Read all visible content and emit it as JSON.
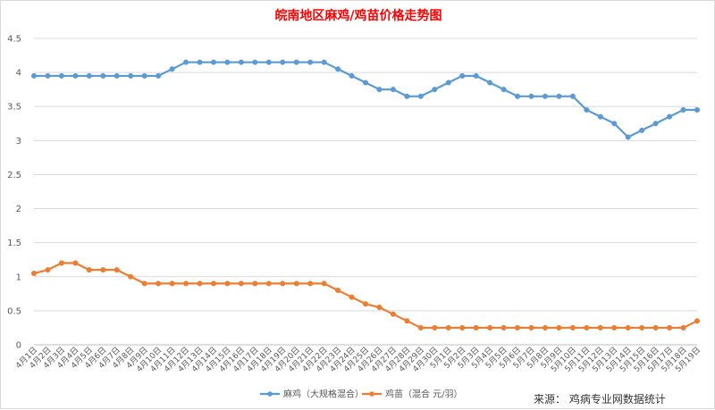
{
  "chart_data": {
    "type": "line",
    "title": "皖南地区麻鸡/鸡苗价格走势图",
    "xlabel": "",
    "ylabel": "",
    "ylim": [
      0,
      4.5
    ],
    "yticks": [
      "0",
      "0.5",
      "1",
      "1.5",
      "2",
      "2.5",
      "3",
      "3.5",
      "4",
      "4.5"
    ],
    "grid": true,
    "legend_position": "bottom",
    "categories": [
      "4月1日",
      "4月2日",
      "4月3日",
      "4月4日",
      "4月5日",
      "4月6日",
      "4月7日",
      "4月8日",
      "4月9日",
      "4月10日",
      "4月11日",
      "4月12日",
      "4月13日",
      "4月14日",
      "4月15日",
      "4月16日",
      "4月17日",
      "4月18日",
      "4月19日",
      "4月20日",
      "4月21日",
      "4月22日",
      "4月23日",
      "4月24日",
      "4月25日",
      "4月26日",
      "4月27日",
      "4月28日",
      "4月29日",
      "4月30日",
      "5月1日",
      "5月2日",
      "5月3日",
      "5月4日",
      "5月5日",
      "5月6日",
      "5月7日",
      "5月8日",
      "5月9日",
      "5月10日",
      "5月11日",
      "5月12日",
      "5月13日",
      "5月14日",
      "5月15日",
      "5月16日",
      "5月17日",
      "5月18日",
      "5月19日"
    ],
    "series": [
      {
        "name": "麻鸡（大规格混合）",
        "color": "#5b9bd5",
        "values": [
          3.95,
          3.95,
          3.95,
          3.95,
          3.95,
          3.95,
          3.95,
          3.95,
          3.95,
          3.95,
          4.05,
          4.15,
          4.15,
          4.15,
          4.15,
          4.15,
          4.15,
          4.15,
          4.15,
          4.15,
          4.15,
          4.15,
          4.05,
          3.95,
          3.85,
          3.75,
          3.75,
          3.65,
          3.65,
          3.75,
          3.85,
          3.95,
          3.95,
          3.85,
          3.75,
          3.65,
          3.65,
          3.65,
          3.65,
          3.65,
          3.45,
          3.35,
          3.25,
          3.05,
          3.15,
          3.25,
          3.35,
          3.45,
          3.45
        ]
      },
      {
        "name": "鸡苗（混合 元/羽）",
        "color": "#ed7d31",
        "values": [
          1.05,
          1.1,
          1.2,
          1.2,
          1.1,
          1.1,
          1.1,
          1.0,
          0.9,
          0.9,
          0.9,
          0.9,
          0.9,
          0.9,
          0.9,
          0.9,
          0.9,
          0.9,
          0.9,
          0.9,
          0.9,
          0.9,
          0.8,
          0.7,
          0.6,
          0.55,
          0.45,
          0.35,
          0.25,
          0.25,
          0.25,
          0.25,
          0.25,
          0.25,
          0.25,
          0.25,
          0.25,
          0.25,
          0.25,
          0.25,
          0.25,
          0.25,
          0.25,
          0.25,
          0.25,
          0.25,
          0.25,
          0.25,
          0.35
        ]
      }
    ]
  },
  "footer": {
    "source": "来源：  鸡病专业网数据统计"
  }
}
